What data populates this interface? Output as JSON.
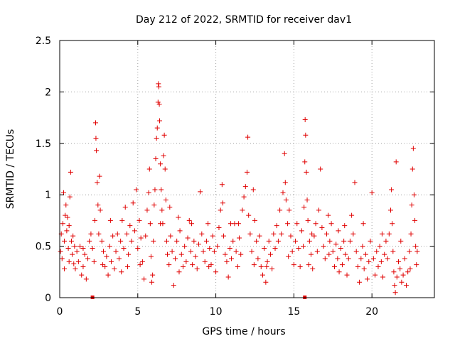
{
  "chart_data": {
    "type": "scatter",
    "title": "Day 212 of 2022, SRMTID for receiver dav1",
    "xlabel": "GPS time / hours",
    "ylabel": "SRMTID / TECUs",
    "xlim": [
      0,
      24
    ],
    "ylim": [
      0,
      2.5
    ],
    "x_ticks": [
      0,
      5,
      10,
      15,
      20
    ],
    "x_tick_labels": [
      "0",
      "5",
      "10",
      "15",
      "20"
    ],
    "y_ticks": [
      0,
      0.5,
      1,
      1.5,
      2,
      2.5
    ],
    "y_tick_labels": [
      "0",
      "0.5",
      "1",
      "1.5",
      "2",
      "2.5"
    ],
    "grid": true,
    "marker": "+",
    "color": "#e00000",
    "axis_markers_x": [
      2.1,
      15.7
    ],
    "series": [
      {
        "name": "dav1",
        "points": [
          [
            0.05,
            0.45
          ],
          [
            0.1,
            0.62
          ],
          [
            0.15,
            0.38
          ],
          [
            0.2,
            0.72
          ],
          [
            0.25,
            1.02
          ],
          [
            0.3,
            0.55
          ],
          [
            0.35,
            0.8
          ],
          [
            0.4,
            0.9
          ],
          [
            0.45,
            0.65
          ],
          [
            0.5,
            0.78
          ],
          [
            0.55,
            0.48
          ],
          [
            0.6,
            0.7
          ],
          [
            0.65,
            0.98
          ],
          [
            0.7,
            1.22
          ],
          [
            0.75,
            0.55
          ],
          [
            0.8,
            0.42
          ],
          [
            0.85,
            0.6
          ],
          [
            0.9,
            0.33
          ],
          [
            0.95,
            0.5
          ],
          [
            1.0,
            0.28
          ],
          [
            1.1,
            0.45
          ],
          [
            1.2,
            0.35
          ],
          [
            1.3,
            0.5
          ],
          [
            1.4,
            0.22
          ],
          [
            1.5,
            0.3
          ],
          [
            1.6,
            0.42
          ],
          [
            1.7,
            0.18
          ],
          [
            1.8,
            0.38
          ],
          [
            1.9,
            0.55
          ],
          [
            2.0,
            0.62
          ],
          [
            2.1,
            0.48
          ],
          [
            2.2,
            0.35
          ],
          [
            2.25,
            0.75
          ],
          [
            2.3,
            1.7
          ],
          [
            2.32,
            1.55
          ],
          [
            2.35,
            1.43
          ],
          [
            2.4,
            1.12
          ],
          [
            2.45,
            0.9
          ],
          [
            2.5,
            0.62
          ],
          [
            2.55,
            1.18
          ],
          [
            2.6,
            0.85
          ],
          [
            2.7,
            0.55
          ],
          [
            2.8,
            0.45
          ],
          [
            2.9,
            0.3
          ],
          [
            3.0,
            0.4
          ],
          [
            3.1,
            0.22
          ],
          [
            3.2,
            0.5
          ],
          [
            3.3,
            0.35
          ],
          [
            3.4,
            0.6
          ],
          [
            3.5,
            0.28
          ],
          [
            3.6,
            0.45
          ],
          [
            3.7,
            0.62
          ],
          [
            3.8,
            0.38
          ],
          [
            3.9,
            0.55
          ],
          [
            4.0,
            0.75
          ],
          [
            4.1,
            0.48
          ],
          [
            4.2,
            0.88
          ],
          [
            4.3,
            0.62
          ],
          [
            4.4,
            0.42
          ],
          [
            4.5,
            0.7
          ],
          [
            4.6,
            0.55
          ],
          [
            4.7,
            0.92
          ],
          [
            4.8,
            0.65
          ],
          [
            4.9,
            1.05
          ],
          [
            5.0,
            0.48
          ],
          [
            5.1,
            0.75
          ],
          [
            5.2,
            0.58
          ],
          [
            5.3,
            0.35
          ],
          [
            5.4,
            0.18
          ],
          [
            5.5,
            0.6
          ],
          [
            5.6,
            0.85
          ],
          [
            5.7,
            1.02
          ],
          [
            5.75,
            1.25
          ],
          [
            5.8,
            0.72
          ],
          [
            5.85,
            0.4
          ],
          [
            5.9,
            0.15
          ],
          [
            5.95,
            0.22
          ],
          [
            6.0,
            0.55
          ],
          [
            6.05,
            0.9
          ],
          [
            6.1,
            1.05
          ],
          [
            6.15,
            1.35
          ],
          [
            6.2,
            1.55
          ],
          [
            6.25,
            1.65
          ],
          [
            6.3,
            1.9
          ],
          [
            6.32,
            2.08
          ],
          [
            6.35,
            2.05
          ],
          [
            6.38,
            1.88
          ],
          [
            6.4,
            1.72
          ],
          [
            6.45,
            1.3
          ],
          [
            6.5,
            1.05
          ],
          [
            6.55,
            0.85
          ],
          [
            6.6,
            0.72
          ],
          [
            6.65,
            1.38
          ],
          [
            6.7,
            1.58
          ],
          [
            6.75,
            1.25
          ],
          [
            6.8,
            0.95
          ],
          [
            6.85,
            0.55
          ],
          [
            6.9,
            0.42
          ],
          [
            7.0,
            0.32
          ],
          [
            7.1,
            0.6
          ],
          [
            7.2,
            0.45
          ],
          [
            7.3,
            0.12
          ],
          [
            7.4,
            0.38
          ],
          [
            7.5,
            0.55
          ],
          [
            7.6,
            0.78
          ],
          [
            7.7,
            0.65
          ],
          [
            7.8,
            0.42
          ],
          [
            7.9,
            0.3
          ],
          [
            8.0,
            0.5
          ],
          [
            8.1,
            0.35
          ],
          [
            8.2,
            0.58
          ],
          [
            8.3,
            0.75
          ],
          [
            8.4,
            0.45
          ],
          [
            8.5,
            0.32
          ],
          [
            8.6,
            0.55
          ],
          [
            8.7,
            0.4
          ],
          [
            8.8,
            0.28
          ],
          [
            8.9,
            0.52
          ],
          [
            9.0,
            1.03
          ],
          [
            9.1,
            0.62
          ],
          [
            9.2,
            0.45
          ],
          [
            9.3,
            0.35
          ],
          [
            9.4,
            0.55
          ],
          [
            9.5,
            0.72
          ],
          [
            9.6,
            0.48
          ],
          [
            9.7,
            0.32
          ],
          [
            9.8,
            0.6
          ],
          [
            9.9,
            0.45
          ],
          [
            10.0,
            0.25
          ],
          [
            10.1,
            0.5
          ],
          [
            10.2,
            0.68
          ],
          [
            10.3,
            0.85
          ],
          [
            10.4,
            1.1
          ],
          [
            10.45,
            0.92
          ],
          [
            10.5,
            0.6
          ],
          [
            10.6,
            0.42
          ],
          [
            10.7,
            0.35
          ],
          [
            10.8,
            0.2
          ],
          [
            10.9,
            0.48
          ],
          [
            11.0,
            0.38
          ],
          [
            11.1,
            0.55
          ],
          [
            11.2,
            0.72
          ],
          [
            11.3,
            0.45
          ],
          [
            11.4,
            0.3
          ],
          [
            11.5,
            0.58
          ],
          [
            11.6,
            0.42
          ],
          [
            11.7,
            0.85
          ],
          [
            11.8,
            0.98
          ],
          [
            11.9,
            1.08
          ],
          [
            12.0,
            1.22
          ],
          [
            12.05,
            1.56
          ],
          [
            12.1,
            0.8
          ],
          [
            12.2,
            0.62
          ],
          [
            12.3,
            0.45
          ],
          [
            12.4,
            1.05
          ],
          [
            12.5,
            0.75
          ],
          [
            12.6,
            0.55
          ],
          [
            12.7,
            0.38
          ],
          [
            12.8,
            0.6
          ],
          [
            12.9,
            0.3
          ],
          [
            13.0,
            0.22
          ],
          [
            13.1,
            0.48
          ],
          [
            13.2,
            0.15
          ],
          [
            13.3,
            0.35
          ],
          [
            13.4,
            0.55
          ],
          [
            13.5,
            0.42
          ],
          [
            13.6,
            0.28
          ],
          [
            13.7,
            0.62
          ],
          [
            13.8,
            0.48
          ],
          [
            13.9,
            0.7
          ],
          [
            14.0,
            0.55
          ],
          [
            14.1,
            0.85
          ],
          [
            14.2,
            0.62
          ],
          [
            14.3,
            1.02
          ],
          [
            14.4,
            1.4
          ],
          [
            14.45,
            1.12
          ],
          [
            14.5,
            0.95
          ],
          [
            14.6,
            0.72
          ],
          [
            14.7,
            0.85
          ],
          [
            14.8,
            0.6
          ],
          [
            14.9,
            0.45
          ],
          [
            15.0,
            0.32
          ],
          [
            15.1,
            0.55
          ],
          [
            15.2,
            0.72
          ],
          [
            15.3,
            0.48
          ],
          [
            15.4,
            0.3
          ],
          [
            15.5,
            0.65
          ],
          [
            15.6,
            0.5
          ],
          [
            15.65,
            0.88
          ],
          [
            15.7,
            1.32
          ],
          [
            15.72,
            1.73
          ],
          [
            15.75,
            1.58
          ],
          [
            15.8,
            1.22
          ],
          [
            15.85,
            0.95
          ],
          [
            15.9,
            0.75
          ],
          [
            16.0,
            0.55
          ],
          [
            16.1,
            0.42
          ],
          [
            16.2,
            0.28
          ],
          [
            16.3,
            0.6
          ],
          [
            16.4,
            0.72
          ],
          [
            16.5,
            0.45
          ],
          [
            16.6,
            0.85
          ],
          [
            16.7,
            1.25
          ],
          [
            16.8,
            0.68
          ],
          [
            16.9,
            0.5
          ],
          [
            17.0,
            0.38
          ],
          [
            17.1,
            0.62
          ],
          [
            17.2,
            0.8
          ],
          [
            17.3,
            0.55
          ],
          [
            17.4,
            0.72
          ],
          [
            17.5,
            0.45
          ],
          [
            17.6,
            0.3
          ],
          [
            17.7,
            0.52
          ],
          [
            17.8,
            0.38
          ],
          [
            17.9,
            0.25
          ],
          [
            18.0,
            0.48
          ],
          [
            18.1,
            0.32
          ],
          [
            18.2,
            0.55
          ],
          [
            18.3,
            0.42
          ],
          [
            18.4,
            0.22
          ],
          [
            18.5,
            0.38
          ],
          [
            18.6,
            0.55
          ],
          [
            18.7,
            0.8
          ],
          [
            18.8,
            0.62
          ],
          [
            18.9,
            1.12
          ],
          [
            19.0,
            0.45
          ],
          [
            19.1,
            0.3
          ],
          [
            19.2,
            0.15
          ],
          [
            19.3,
            0.38
          ],
          [
            19.4,
            0.5
          ],
          [
            19.5,
            0.28
          ],
          [
            19.6,
            0.42
          ],
          [
            19.7,
            0.18
          ],
          [
            19.8,
            0.35
          ],
          [
            19.9,
            0.55
          ],
          [
            20.0,
            1.02
          ],
          [
            20.1,
            0.38
          ],
          [
            20.2,
            0.22
          ],
          [
            20.3,
            0.45
          ],
          [
            20.4,
            0.3
          ],
          [
            20.5,
            0.5
          ],
          [
            20.6,
            0.35
          ],
          [
            20.7,
            0.2
          ],
          [
            20.8,
            0.42
          ],
          [
            20.9,
            0.55
          ],
          [
            21.0,
            0.38
          ],
          [
            21.1,
            0.62
          ],
          [
            21.2,
            0.85
          ],
          [
            21.25,
            1.05
          ],
          [
            21.3,
            0.72
          ],
          [
            21.35,
            0.45
          ],
          [
            21.4,
            0.25
          ],
          [
            21.45,
            0.12
          ],
          [
            21.5,
            0.05
          ],
          [
            21.55,
            1.32
          ],
          [
            21.6,
            0.2
          ],
          [
            21.7,
            0.35
          ],
          [
            21.8,
            0.28
          ],
          [
            21.9,
            0.15
          ],
          [
            22.0,
            0.22
          ],
          [
            22.1,
            0.38
          ],
          [
            22.2,
            0.12
          ],
          [
            22.3,
            0.25
          ],
          [
            22.4,
            0.45
          ],
          [
            22.5,
            0.62
          ],
          [
            22.55,
            0.9
          ],
          [
            22.6,
            1.25
          ],
          [
            22.65,
            1.45
          ],
          [
            22.7,
            1.0
          ],
          [
            22.75,
            0.75
          ],
          [
            22.8,
            0.5
          ],
          [
            22.85,
            0.32
          ],
          [
            22.9,
            0.45
          ],
          [
            0.3,
            0.28
          ],
          [
            0.6,
            0.35
          ],
          [
            1.5,
            0.48
          ],
          [
            3.25,
            0.75
          ],
          [
            4.35,
            0.3
          ],
          [
            5.15,
            0.32
          ],
          [
            7.65,
            0.25
          ],
          [
            8.45,
            0.72
          ],
          [
            9.55,
            0.3
          ],
          [
            11.45,
            0.72
          ],
          [
            13.25,
            0.3
          ],
          [
            14.65,
            0.4
          ],
          [
            16.15,
            0.62
          ],
          [
            17.25,
            0.42
          ],
          [
            18.25,
            0.7
          ],
          [
            19.45,
            0.72
          ],
          [
            20.65,
            0.62
          ],
          [
            21.85,
            0.55
          ],
          [
            22.45,
            0.28
          ],
          [
            6.45,
            0.72
          ],
          [
            7.05,
            0.88
          ],
          [
            2.75,
            0.32
          ],
          [
            12.45,
            0.32
          ],
          [
            15.95,
            0.32
          ],
          [
            10.95,
            0.72
          ],
          [
            3.95,
            0.25
          ],
          [
            17.85,
            0.65
          ]
        ]
      }
    ]
  }
}
